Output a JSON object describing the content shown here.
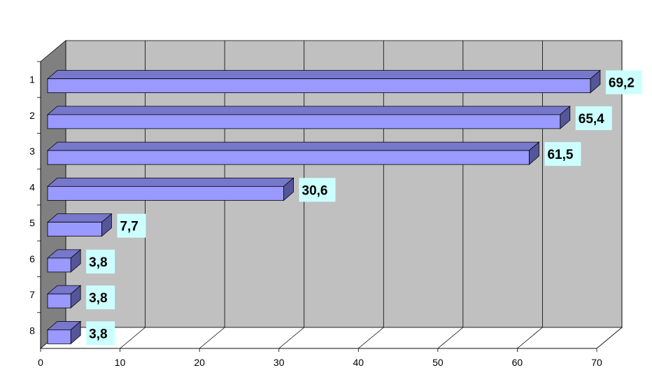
{
  "chart_data": {
    "type": "bar",
    "orientation": "horizontal",
    "style": "3d",
    "categories": [
      "1",
      "2",
      "3",
      "4",
      "5",
      "6",
      "7",
      "8"
    ],
    "values": [
      69.2,
      65.4,
      61.5,
      30.6,
      7.7,
      3.8,
      3.8,
      3.8
    ],
    "data_labels": [
      "69,2",
      "65,4",
      "61,5",
      "30,6",
      "7,7",
      "3,8",
      "3,8",
      "3,8"
    ],
    "x_ticks": [
      "0",
      "10",
      "20",
      "30",
      "40",
      "50",
      "60",
      "70"
    ],
    "xlim": [
      0,
      70
    ],
    "title": "",
    "xlabel": "",
    "ylabel": "",
    "grid": true,
    "legend": "none",
    "colors": {
      "bar_front": "#9999ff",
      "bar_top": "#7777cc",
      "bar_side": "#555599",
      "back_wall": "#c0c0c0",
      "side_wall": "#808080",
      "label_bg": "#ccffff"
    }
  }
}
